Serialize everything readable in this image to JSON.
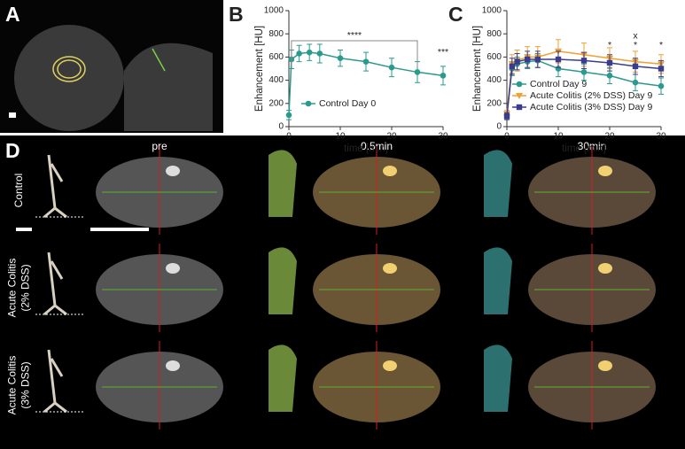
{
  "panel_labels": [
    "A",
    "B",
    "C",
    "D"
  ],
  "panel_d": {
    "columns": [
      "pre",
      "0.5min",
      "30min"
    ],
    "rows": [
      [
        "Control"
      ],
      [
        "Acute Colitis",
        "(2% DSS)"
      ],
      [
        "Acute Colitis",
        "(3% DSS)"
      ]
    ]
  },
  "chart_data": [
    {
      "type": "line",
      "xlabel": "time [min]",
      "ylabel": "Enhancement [HU]",
      "x": [
        0,
        0.5,
        2,
        4,
        6,
        10,
        15,
        20,
        25,
        30
      ],
      "xlim": [
        0,
        30
      ],
      "xticks": [
        0,
        10,
        20,
        30
      ],
      "ylim": [
        0,
        1000
      ],
      "yticks": [
        0,
        200,
        400,
        600,
        800,
        1000
      ],
      "legend": "lower center",
      "series": [
        {
          "name": "Control Day 0",
          "color": "#2a9a8c",
          "marker": "circle",
          "values": [
            100,
            580,
            630,
            640,
            630,
            590,
            560,
            510,
            470,
            440
          ],
          "errors": [
            40,
            80,
            70,
            70,
            80,
            70,
            80,
            80,
            90,
            80
          ]
        }
      ],
      "annotations": [
        {
          "text": "****",
          "x": [
            0.5,
            25
          ],
          "y": 740
        },
        {
          "text": "***",
          "x": 30,
          "y": 640
        }
      ]
    },
    {
      "type": "line",
      "xlabel": "time [min]",
      "ylabel": "Enhancement [HU]",
      "x": [
        0,
        1,
        2,
        4,
        6,
        10,
        15,
        20,
        25,
        30
      ],
      "xlim": [
        0,
        30
      ],
      "xticks": [
        0,
        10,
        20,
        30
      ],
      "ylim": [
        0,
        1000
      ],
      "yticks": [
        0,
        200,
        400,
        600,
        800,
        1000
      ],
      "legend": "lower left",
      "series": [
        {
          "name": "Control Day 9",
          "color": "#2a9a8c",
          "marker": "circle",
          "values": [
            100,
            500,
            540,
            560,
            570,
            500,
            470,
            440,
            380,
            350
          ],
          "errors": [
            30,
            60,
            60,
            60,
            60,
            70,
            70,
            70,
            70,
            70
          ]
        },
        {
          "name": "Acute Colitis (2% DSS) Day 9",
          "color": "#f0a030",
          "marker": "triangle",
          "values": [
            110,
            540,
            570,
            600,
            600,
            650,
            620,
            590,
            560,
            540
          ],
          "errors": [
            30,
            80,
            90,
            90,
            90,
            100,
            100,
            90,
            90,
            80
          ]
        },
        {
          "name": "Acute Colitis (3% DSS) Day 9",
          "color": "#3c3c8c",
          "marker": "square",
          "values": [
            90,
            520,
            560,
            580,
            580,
            580,
            570,
            550,
            520,
            500
          ],
          "errors": [
            30,
            70,
            70,
            70,
            70,
            70,
            70,
            70,
            70,
            70
          ]
        }
      ],
      "annotations": [
        {
          "text": "*",
          "x": 20,
          "y": 700
        },
        {
          "text": "*",
          "x": 25,
          "y": 700
        },
        {
          "text": "x",
          "x": 25,
          "y": 780
        },
        {
          "text": "*",
          "x": 30,
          "y": 700
        }
      ]
    }
  ]
}
